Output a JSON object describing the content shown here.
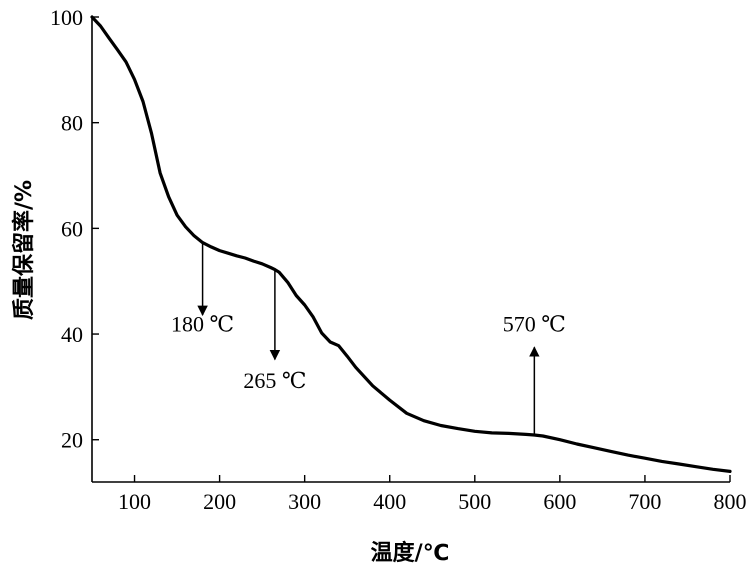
{
  "chart_data": {
    "type": "line",
    "xlabel": "温度/℃",
    "ylabel": "质量保留率/%",
    "xlim": [
      50,
      800
    ],
    "ylim": [
      12,
      100
    ],
    "x_ticks": [
      100,
      200,
      300,
      400,
      500,
      600,
      700,
      800
    ],
    "y_ticks": [
      20,
      40,
      60,
      80,
      100
    ],
    "grid": false,
    "legend": "none",
    "line_color": "#000000",
    "series": [
      {
        "x": [
          50,
          60,
          70,
          80,
          90,
          100,
          110,
          120,
          130,
          140,
          150,
          160,
          170,
          180,
          190,
          200,
          210,
          220,
          230,
          240,
          250,
          260,
          265,
          270,
          280,
          290,
          300,
          310,
          320,
          330,
          340,
          350,
          360,
          380,
          400,
          420,
          440,
          460,
          480,
          500,
          520,
          540,
          560,
          570,
          580,
          600,
          620,
          640,
          660,
          680,
          700,
          720,
          740,
          760,
          780,
          800
        ],
        "y": [
          100.0,
          98.3,
          96.0,
          93.8,
          91.5,
          88.2,
          84.0,
          78.0,
          70.5,
          66.0,
          62.5,
          60.3,
          58.6,
          57.3,
          56.5,
          55.8,
          55.3,
          54.8,
          54.4,
          53.8,
          53.3,
          52.6,
          52.2,
          51.7,
          49.8,
          47.3,
          45.5,
          43.2,
          40.2,
          38.5,
          37.8,
          35.8,
          33.7,
          30.2,
          27.5,
          25.0,
          23.6,
          22.7,
          22.1,
          21.6,
          21.3,
          21.2,
          21.0,
          20.9,
          20.7,
          20.0,
          19.2,
          18.5,
          17.8,
          17.1,
          16.5,
          15.9,
          15.4,
          14.9,
          14.4,
          14.0
        ]
      }
    ],
    "annotations": [
      {
        "label": "180 ℃",
        "x": 180,
        "y": 57.3,
        "arrow": "down",
        "arrow_end_y": 43.6,
        "text_y": 40.5
      },
      {
        "label": "265 ℃",
        "x": 265,
        "y": 52.2,
        "arrow": "down",
        "arrow_end_y": 35.2,
        "text_y": 29.8
      },
      {
        "label": "570 ℃",
        "x": 570,
        "y": 20.9,
        "arrow": "up",
        "arrow_end_y": 37.5,
        "text_y": 40.5
      }
    ]
  }
}
